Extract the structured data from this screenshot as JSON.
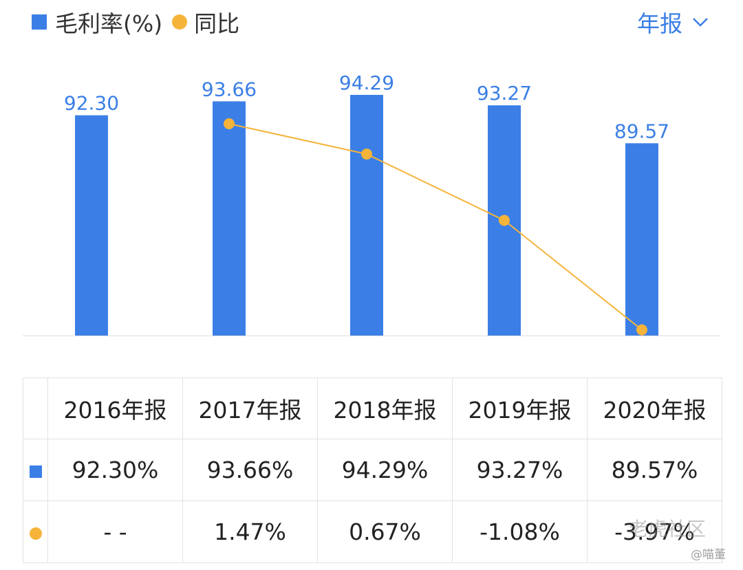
{
  "legend": {
    "bar_label": "毛利率(%)",
    "line_label": "同比"
  },
  "period_selector": {
    "label": "年报"
  },
  "chart_data": {
    "type": "bar",
    "categories": [
      "2016年报",
      "2017年报",
      "2018年报",
      "2019年报",
      "2020年报"
    ],
    "series": [
      {
        "name": "毛利率(%)",
        "type": "bar",
        "values": [
          92.3,
          93.66,
          94.29,
          93.27,
          89.57
        ],
        "color": "#3b7fe6"
      },
      {
        "name": "同比",
        "type": "line",
        "values": [
          null,
          1.47,
          0.67,
          -1.08,
          -3.97
        ],
        "color": "#f6b43a"
      }
    ],
    "bar_labels": [
      "92.30",
      "93.66",
      "94.29",
      "93.27",
      "89.57"
    ],
    "grid": false
  },
  "table": {
    "headers": [
      "2016年报",
      "2017年报",
      "2018年报",
      "2019年报",
      "2020年报"
    ],
    "row_margin": [
      "92.30%",
      "93.66%",
      "94.29%",
      "93.27%",
      "89.57%"
    ],
    "row_yoy": [
      "- -",
      "1.47%",
      "0.67%",
      "-1.08%",
      "-3.97%"
    ]
  },
  "colors": {
    "bar": "#3b7fe6",
    "line": "#f6b43a",
    "positive": "#d9464e",
    "negative": "#1fa666",
    "label": "#3b7fe6"
  },
  "watermark": {
    "site": "老虎社区",
    "user": "@喵董"
  }
}
